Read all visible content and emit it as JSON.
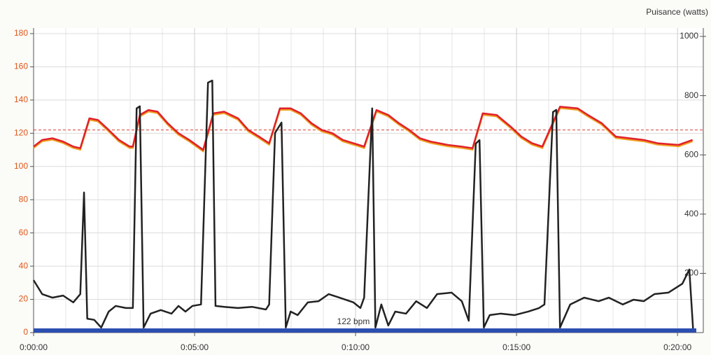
{
  "chart_data": {
    "type": "line",
    "y2_label": "Puisance (watts)",
    "xlim": [
      0,
      1235
    ],
    "xticks": [
      {
        "value": 0,
        "label": "0:00:00"
      },
      {
        "value": 300,
        "label": "0:05:00"
      },
      {
        "value": 600,
        "label": "0:10:00"
      },
      {
        "value": 900,
        "label": "0:15:00"
      },
      {
        "value": 1200,
        "label": "0:20:00"
      }
    ],
    "ylim": [
      0,
      180
    ],
    "yticks": [
      0,
      20,
      40,
      60,
      80,
      100,
      120,
      140,
      160,
      180
    ],
    "y2lim": [
      0,
      1000
    ],
    "y2ticks": [
      200,
      400,
      600,
      800,
      1000
    ],
    "grid": true,
    "reference_line": {
      "value": 122,
      "label": "122 bpm",
      "color": "#d9413a"
    },
    "series": [
      {
        "color": "#e0202a",
        "x": [
          0,
          16,
          35,
          55,
          74,
          87,
          104,
          120,
          140,
          159,
          179,
          185,
          198,
          214,
          231,
          250,
          270,
          290,
          316,
          335,
          355,
          381,
          400,
          420,
          439,
          459,
          479,
          498,
          518,
          537,
          557,
          576,
          596,
          616,
          639,
          661,
          681,
          700,
          720,
          740,
          772,
          798,
          818,
          837,
          863,
          889,
          909,
          929,
          948,
          981,
          1014,
          1033,
          1059,
          1085,
          1111,
          1137,
          1163,
          1202,
          1228
        ],
        "values": [
          112,
          116,
          117,
          115,
          112,
          111,
          129,
          128,
          122,
          116,
          112,
          112,
          131,
          134,
          133,
          126,
          120,
          116,
          110,
          132,
          133,
          129,
          122,
          118,
          114,
          135,
          135,
          132,
          126,
          122,
          120,
          116,
          114,
          112,
          134,
          131,
          126,
          122,
          117,
          115,
          113,
          112,
          111,
          132,
          131,
          124,
          118,
          114,
          112,
          136,
          135,
          131,
          126,
          118,
          117,
          116,
          114,
          113,
          116
        ]
      },
      {
        "color": "#222222",
        "axis": "y2",
        "x": [
          0,
          16,
          35,
          55,
          74,
          87,
          94,
          100,
          113,
          126,
          140,
          153,
          172,
          185,
          192,
          198,
          205,
          218,
          237,
          257,
          270,
          283,
          296,
          312,
          325,
          333,
          339,
          355,
          381,
          407,
          433,
          439,
          450,
          462,
          470,
          479,
          492,
          511,
          531,
          550,
          570,
          596,
          609,
          616,
          631,
          637,
          648,
          661,
          674,
          694,
          713,
          733,
          752,
          779,
          798,
          811,
          824,
          831,
          839,
          850,
          870,
          896,
          922,
          942,
          952,
          968,
          974,
          981,
          1000,
          1026,
          1053,
          1072,
          1098,
          1118,
          1137,
          1157,
          1183,
          1209,
          1222,
          1229
        ],
        "values": [
          177,
          130,
          118,
          125,
          102,
          130,
          473,
          47,
          43,
          17,
          71,
          90,
          83,
          83,
          757,
          764,
          17,
          64,
          76,
          64,
          90,
          71,
          90,
          95,
          844,
          851,
          90,
          87,
          83,
          87,
          78,
          95,
          674,
          709,
          17,
          71,
          59,
          102,
          106,
          130,
          118,
          102,
          83,
          118,
          757,
          17,
          95,
          24,
          71,
          64,
          106,
          83,
          130,
          135,
          106,
          40,
          638,
          650,
          17,
          59,
          64,
          59,
          71,
          83,
          95,
          745,
          752,
          17,
          95,
          118,
          106,
          118,
          95,
          111,
          106,
          130,
          135,
          165,
          213,
          12
        ]
      }
    ]
  }
}
